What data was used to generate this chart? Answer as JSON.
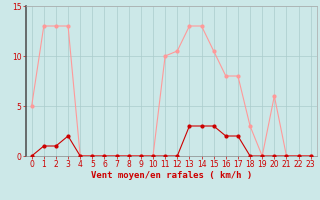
{
  "hours": [
    0,
    1,
    2,
    3,
    4,
    5,
    6,
    7,
    8,
    9,
    10,
    11,
    12,
    13,
    14,
    15,
    16,
    17,
    18,
    19,
    20,
    21,
    22,
    23
  ],
  "vent_moyen": [
    0,
    1,
    1,
    2,
    0,
    0,
    0,
    0,
    0,
    0,
    0,
    0,
    0,
    3,
    3,
    3,
    2,
    2,
    0,
    0,
    0,
    0,
    0,
    0
  ],
  "rafales": [
    5,
    13,
    13,
    13,
    0,
    0,
    0,
    0,
    0,
    0,
    0,
    10,
    10.5,
    13,
    13,
    10.5,
    8,
    8,
    3,
    0,
    6,
    0,
    0,
    0
  ],
  "color_moyen": "#cc0000",
  "color_rafales": "#ff9999",
  "bg_color": "#cce8e8",
  "grid_color": "#aacccc",
  "xlabel": "Vent moyen/en rafales ( km/h )",
  "ylim": [
    0,
    15
  ],
  "xlim": [
    -0.5,
    23.5
  ],
  "yticks": [
    0,
    5,
    10,
    15
  ],
  "xticks": [
    0,
    1,
    2,
    3,
    4,
    5,
    6,
    7,
    8,
    9,
    10,
    11,
    12,
    13,
    14,
    15,
    16,
    17,
    18,
    19,
    20,
    21,
    22,
    23
  ],
  "markersize": 2.0,
  "linewidth": 0.8,
  "tick_fontsize": 5.5,
  "xlabel_fontsize": 6.5
}
